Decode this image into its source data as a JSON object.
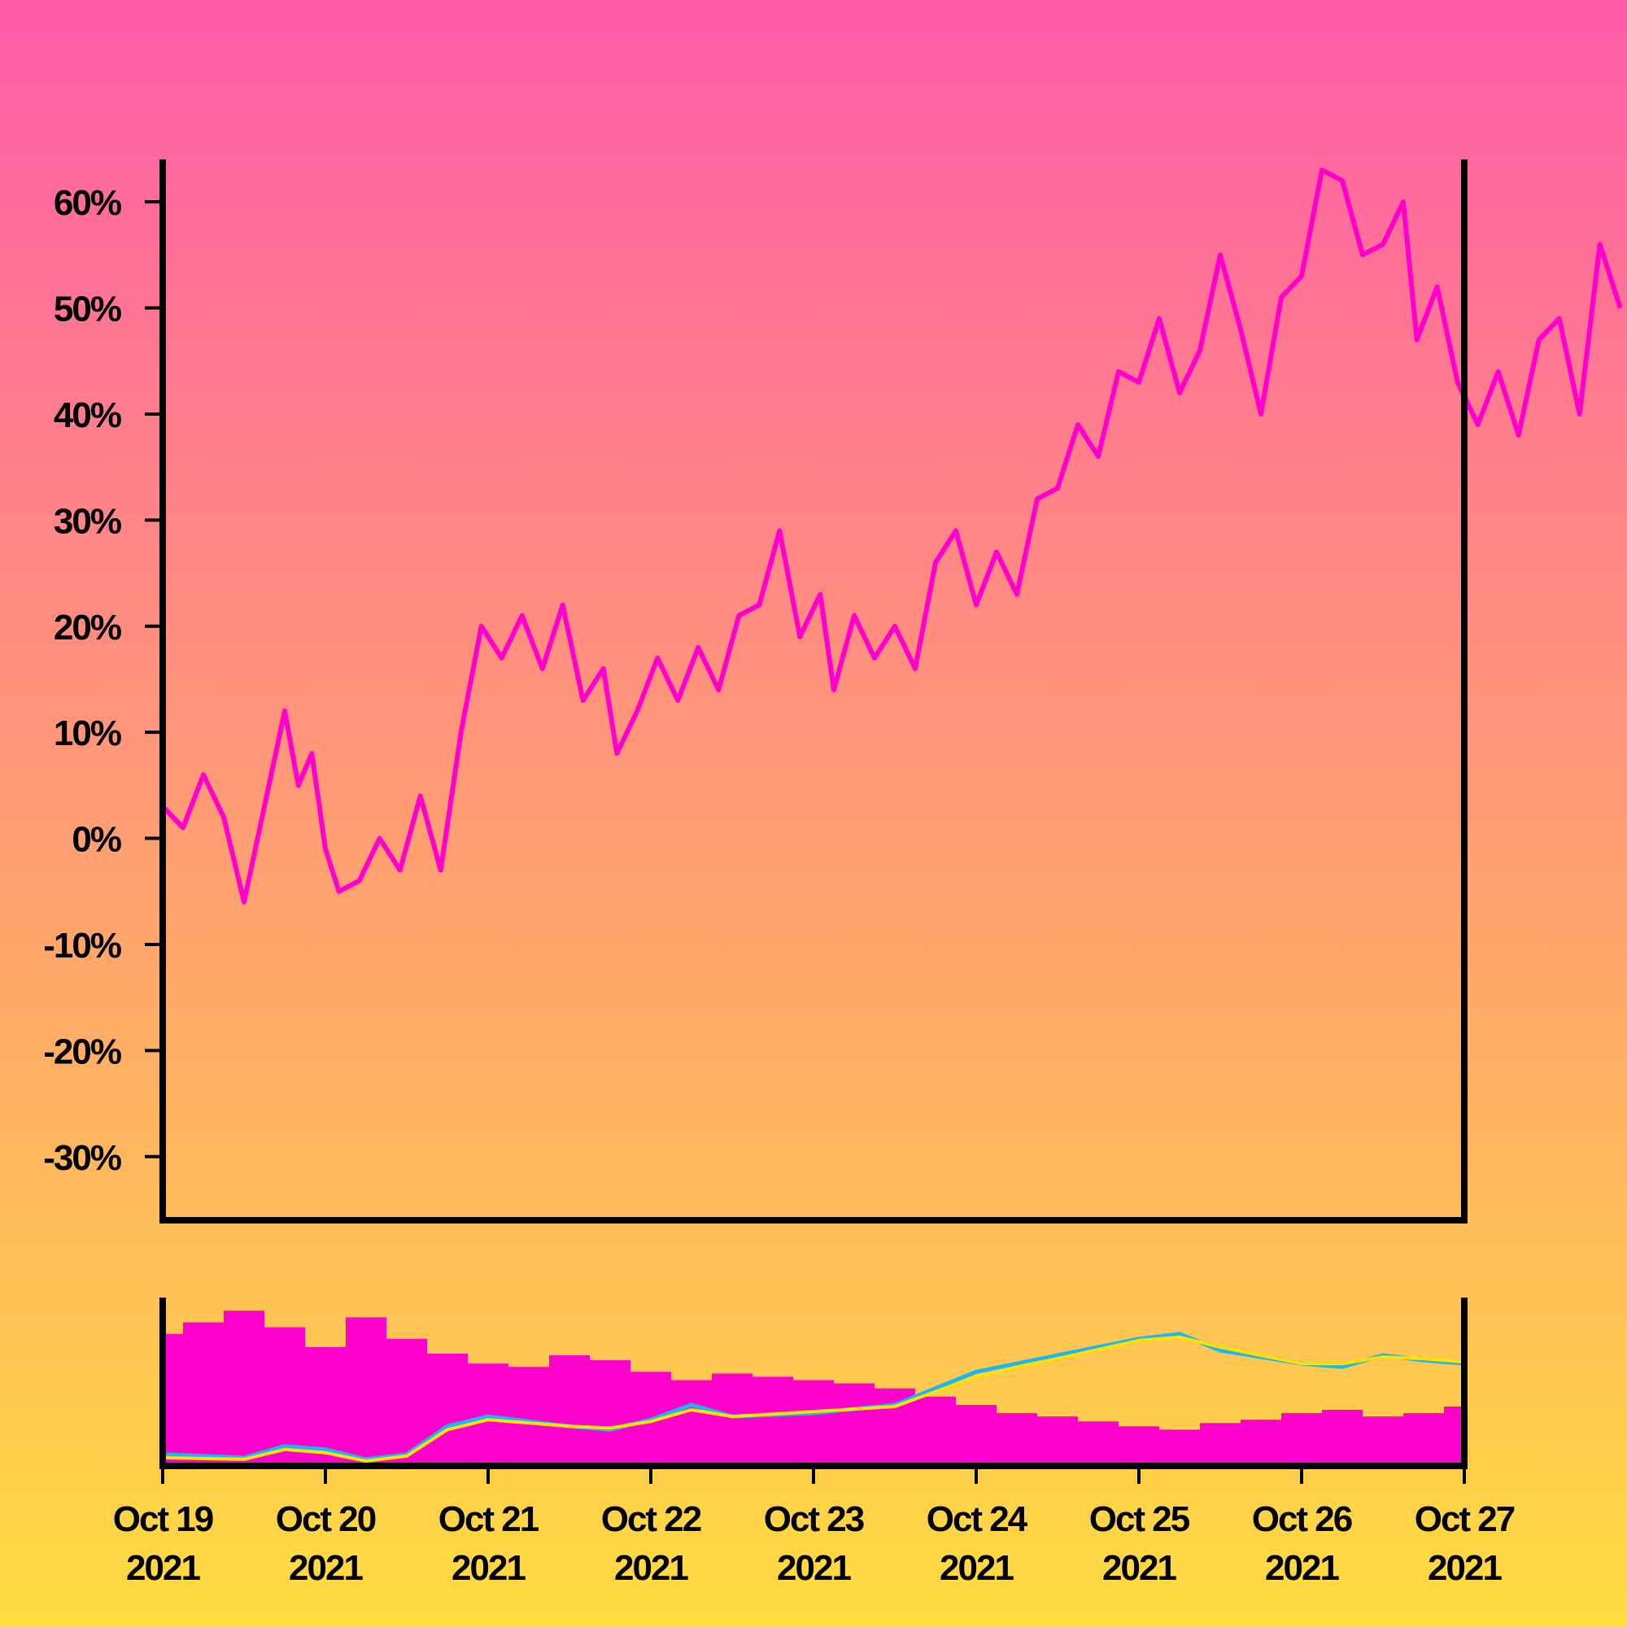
{
  "chart_data": [
    {
      "type": "line",
      "title": "",
      "xlabel": "",
      "ylabel": "",
      "ylim": [
        -36,
        64
      ],
      "y_ticks": [
        "-30%",
        "-20%",
        "-10%",
        "0%",
        "10%",
        "20%",
        "30%",
        "40%",
        "50%",
        "60%"
      ],
      "y_tick_values": [
        -30,
        -20,
        -10,
        0,
        10,
        20,
        30,
        40,
        50,
        60
      ],
      "x_ticks": [
        {
          "month_day": "Oct 19",
          "year": "2021"
        },
        {
          "month_day": "Oct 20",
          "year": "2021"
        },
        {
          "month_day": "Oct 21",
          "year": "2021"
        },
        {
          "month_day": "Oct 22",
          "year": "2021"
        },
        {
          "month_day": "Oct 23",
          "year": "2021"
        },
        {
          "month_day": "Oct 24",
          "year": "2021"
        },
        {
          "month_day": "Oct 25",
          "year": "2021"
        },
        {
          "month_day": "Oct 26",
          "year": "2021"
        },
        {
          "month_day": "Oct 27",
          "year": "2021"
        }
      ],
      "x_range": [
        "2021-10-19",
        "2021-10-27"
      ],
      "grid": false,
      "series": [
        {
          "color": "#ff00cc",
          "points": [
            [
              "2021-10-19 00:00",
              3
            ],
            [
              "2021-10-19 03:00",
              1
            ],
            [
              "2021-10-19 06:00",
              6
            ],
            [
              "2021-10-19 09:00",
              2
            ],
            [
              "2021-10-19 12:00",
              -6
            ],
            [
              "2021-10-19 15:00",
              3
            ],
            [
              "2021-10-19 18:00",
              12
            ],
            [
              "2021-10-19 20:00",
              5
            ],
            [
              "2021-10-19 22:00",
              8
            ],
            [
              "2021-10-20 00:00",
              -1
            ],
            [
              "2021-10-20 02:00",
              -5
            ],
            [
              "2021-10-20 05:00",
              -4
            ],
            [
              "2021-10-20 08:00",
              0
            ],
            [
              "2021-10-20 11:00",
              -3
            ],
            [
              "2021-10-20 14:00",
              4
            ],
            [
              "2021-10-20 17:00",
              -3
            ],
            [
              "2021-10-20 20:00",
              10
            ],
            [
              "2021-10-20 23:00",
              20
            ],
            [
              "2021-10-21 02:00",
              17
            ],
            [
              "2021-10-21 05:00",
              21
            ],
            [
              "2021-10-21 08:00",
              16
            ],
            [
              "2021-10-21 11:00",
              22
            ],
            [
              "2021-10-21 14:00",
              13
            ],
            [
              "2021-10-21 17:00",
              16
            ],
            [
              "2021-10-21 19:00",
              8
            ],
            [
              "2021-10-21 22:00",
              12
            ],
            [
              "2021-10-22 01:00",
              17
            ],
            [
              "2021-10-22 04:00",
              13
            ],
            [
              "2021-10-22 07:00",
              18
            ],
            [
              "2021-10-22 10:00",
              14
            ],
            [
              "2021-10-22 13:00",
              21
            ],
            [
              "2021-10-22 16:00",
              22
            ],
            [
              "2021-10-22 19:00",
              29
            ],
            [
              "2021-10-22 22:00",
              19
            ],
            [
              "2021-10-23 01:00",
              23
            ],
            [
              "2021-10-23 03:00",
              14
            ],
            [
              "2021-10-23 06:00",
              21
            ],
            [
              "2021-10-23 09:00",
              17
            ],
            [
              "2021-10-23 12:00",
              20
            ],
            [
              "2021-10-23 15:00",
              16
            ],
            [
              "2021-10-23 18:00",
              26
            ],
            [
              "2021-10-23 21:00",
              29
            ],
            [
              "2021-10-24 00:00",
              22
            ],
            [
              "2021-10-24 03:00",
              27
            ],
            [
              "2021-10-24 06:00",
              23
            ],
            [
              "2021-10-24 09:00",
              32
            ],
            [
              "2021-10-24 12:00",
              33
            ],
            [
              "2021-10-24 15:00",
              39
            ],
            [
              "2021-10-24 18:00",
              36
            ],
            [
              "2021-10-24 21:00",
              44
            ],
            [
              "2021-10-25 00:00",
              43
            ],
            [
              "2021-10-25 03:00",
              49
            ],
            [
              "2021-10-25 06:00",
              42
            ],
            [
              "2021-10-25 09:00",
              46
            ],
            [
              "2021-10-25 12:00",
              55
            ],
            [
              "2021-10-25 15:00",
              48
            ],
            [
              "2021-10-25 18:00",
              40
            ],
            [
              "2021-10-25 21:00",
              51
            ],
            [
              "2021-10-26 00:00",
              53
            ],
            [
              "2021-10-26 03:00",
              63
            ],
            [
              "2021-10-26 06:00",
              62
            ],
            [
              "2021-10-26 09:00",
              55
            ],
            [
              "2021-10-26 12:00",
              56
            ],
            [
              "2021-10-26 15:00",
              60
            ],
            [
              "2021-10-26 17:00",
              47
            ],
            [
              "2021-10-26 20:00",
              52
            ],
            [
              "2021-10-26 23:00",
              43
            ],
            [
              "2021-10-27 02:00",
              39
            ],
            [
              "2021-10-27 05:00",
              44
            ],
            [
              "2021-10-27 08:00",
              38
            ],
            [
              "2021-10-27 11:00",
              47
            ],
            [
              "2021-10-27 14:00",
              49
            ],
            [
              "2021-10-27 17:00",
              40
            ],
            [
              "2021-10-27 20:00",
              56
            ],
            [
              "2021-10-27 23:00",
              50
            ]
          ]
        }
      ]
    },
    {
      "type": "bar",
      "title": "",
      "xlabel": "",
      "ylabel": "",
      "ylim": [
        0,
        100
      ],
      "x_range": [
        "2021-10-19",
        "2021-10-27"
      ],
      "grid": false,
      "series": [
        {
          "type": "bar",
          "color": "#ff00cc",
          "points": [
            [
              "2021-10-19 00:00",
              78
            ],
            [
              "2021-10-19 06:00",
              85
            ],
            [
              "2021-10-19 12:00",
              92
            ],
            [
              "2021-10-19 18:00",
              82
            ],
            [
              "2021-10-20 00:00",
              70
            ],
            [
              "2021-10-20 06:00",
              88
            ],
            [
              "2021-10-20 12:00",
              75
            ],
            [
              "2021-10-20 18:00",
              66
            ],
            [
              "2021-10-21 00:00",
              60
            ],
            [
              "2021-10-21 06:00",
              58
            ],
            [
              "2021-10-21 12:00",
              65
            ],
            [
              "2021-10-21 18:00",
              62
            ],
            [
              "2021-10-22 00:00",
              55
            ],
            [
              "2021-10-22 06:00",
              50
            ],
            [
              "2021-10-22 12:00",
              54
            ],
            [
              "2021-10-22 18:00",
              52
            ],
            [
              "2021-10-23 00:00",
              50
            ],
            [
              "2021-10-23 06:00",
              48
            ],
            [
              "2021-10-23 12:00",
              45
            ],
            [
              "2021-10-23 18:00",
              40
            ],
            [
              "2021-10-24 00:00",
              35
            ],
            [
              "2021-10-24 06:00",
              30
            ],
            [
              "2021-10-24 12:00",
              28
            ],
            [
              "2021-10-24 18:00",
              25
            ],
            [
              "2021-10-25 00:00",
              22
            ],
            [
              "2021-10-25 06:00",
              20
            ],
            [
              "2021-10-25 12:00",
              24
            ],
            [
              "2021-10-25 18:00",
              26
            ],
            [
              "2021-10-26 00:00",
              30
            ],
            [
              "2021-10-26 06:00",
              32
            ],
            [
              "2021-10-26 12:00",
              28
            ],
            [
              "2021-10-26 18:00",
              30
            ],
            [
              "2021-10-27 00:00",
              34
            ]
          ]
        },
        {
          "type": "line",
          "color": "#1ab8f0",
          "points": [
            [
              "2021-10-19 00:00",
              5
            ],
            [
              "2021-10-19 12:00",
              3
            ],
            [
              "2021-10-19 18:00",
              10
            ],
            [
              "2021-10-20 00:00",
              8
            ],
            [
              "2021-10-20 06:00",
              2
            ],
            [
              "2021-10-20 12:00",
              5
            ],
            [
              "2021-10-20 18:00",
              22
            ],
            [
              "2021-10-21 00:00",
              28
            ],
            [
              "2021-10-21 12:00",
              22
            ],
            [
              "2021-10-21 18:00",
              20
            ],
            [
              "2021-10-22 00:00",
              26
            ],
            [
              "2021-10-22 06:00",
              35
            ],
            [
              "2021-10-22 12:00",
              28
            ],
            [
              "2021-10-23 00:00",
              30
            ],
            [
              "2021-10-23 12:00",
              35
            ],
            [
              "2021-10-24 00:00",
              55
            ],
            [
              "2021-10-24 06:00",
              60
            ],
            [
              "2021-10-24 12:00",
              65
            ],
            [
              "2021-10-25 00:00",
              75
            ],
            [
              "2021-10-25 06:00",
              78
            ],
            [
              "2021-10-25 12:00",
              68
            ],
            [
              "2021-10-26 00:00",
              60
            ],
            [
              "2021-10-26 06:00",
              58
            ],
            [
              "2021-10-26 12:00",
              65
            ],
            [
              "2021-10-26 18:00",
              62
            ],
            [
              "2021-10-27 00:00",
              60
            ]
          ]
        },
        {
          "type": "line",
          "color": "#ffe000",
          "points": [
            [
              "2021-10-19 00:00",
              3
            ],
            [
              "2021-10-19 12:00",
              2
            ],
            [
              "2021-10-19 18:00",
              8
            ],
            [
              "2021-10-20 00:00",
              6
            ],
            [
              "2021-10-20 06:00",
              1
            ],
            [
              "2021-10-20 12:00",
              4
            ],
            [
              "2021-10-20 18:00",
              20
            ],
            [
              "2021-10-21 00:00",
              26
            ],
            [
              "2021-10-21 12:00",
              22
            ],
            [
              "2021-10-21 18:00",
              21
            ],
            [
              "2021-10-22 00:00",
              25
            ],
            [
              "2021-10-22 06:00",
              32
            ],
            [
              "2021-10-22 12:00",
              28
            ],
            [
              "2021-10-23 00:00",
              31
            ],
            [
              "2021-10-23 12:00",
              34
            ],
            [
              "2021-10-24 00:00",
              52
            ],
            [
              "2021-10-24 06:00",
              58
            ],
            [
              "2021-10-24 12:00",
              63
            ],
            [
              "2021-10-25 00:00",
              74
            ],
            [
              "2021-10-25 06:00",
              76
            ],
            [
              "2021-10-25 12:00",
              70
            ],
            [
              "2021-10-26 00:00",
              60
            ],
            [
              "2021-10-26 06:00",
              60
            ],
            [
              "2021-10-26 12:00",
              64
            ],
            [
              "2021-10-26 18:00",
              63
            ],
            [
              "2021-10-27 00:00",
              61
            ]
          ]
        }
      ]
    }
  ],
  "colors": {
    "background_top": "#ff5ca8",
    "background_bottom": "#ffdc40",
    "axis": "#000000"
  }
}
